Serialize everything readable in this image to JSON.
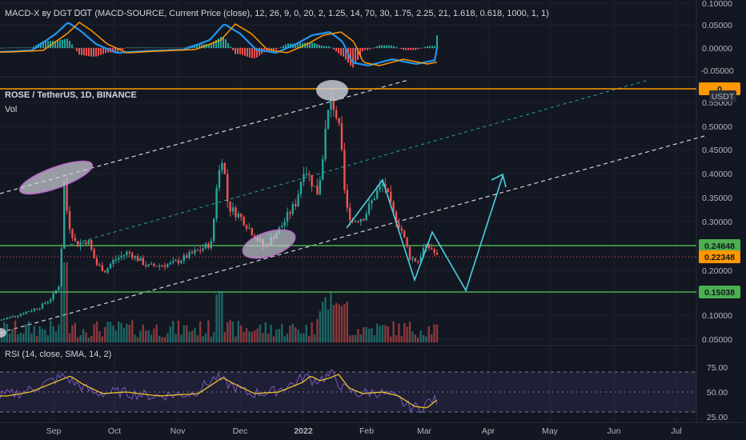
{
  "chart_data": {
    "type": "candlestick",
    "x_labels": [
      "Sep",
      "Oct",
      "Nov",
      "Dec",
      "2022",
      "Feb",
      "Mar",
      "Apr",
      "May",
      "Jun",
      "Jul"
    ],
    "main": {
      "title": "ROSE / TetherUS, 1D, BINANCE",
      "volume_label": "Vol",
      "currency": "USDT",
      "yticks": [
        "0.55000",
        "0.50000",
        "0.45000",
        "0.40000",
        "0.35000",
        "0.30000",
        "0.25000",
        "0.20000",
        "0.10000",
        "0.05000"
      ],
      "price_tags": [
        {
          "value": "0.24648",
          "color": "#4caf50"
        },
        {
          "value": "0.22348",
          "color": "#ff9800"
        },
        {
          "value": "0.15038",
          "color": "#4caf50"
        },
        {
          "value": "0",
          "color": "#ff9800"
        }
      ],
      "horizontal_levels": [
        0.246,
        0.15,
        0.585
      ]
    },
    "macd": {
      "title": "MACD-X вy DGT ᎠᏀᎢ (MACD-SOURCE, Current Price (close), 12, 26, 9, 0, 20, 2, 1.25, 14, 70, 30, 1.75, 2.25, 21, 1.618, 0.618, 1000, 1, 1)",
      "yticks": [
        "0.10000",
        "0.05000",
        "0.00000",
        "-0.05000"
      ]
    },
    "rsi": {
      "title": "RSI (14, close, SMA, 14, 2)",
      "yticks": [
        "75.00",
        "50.00",
        "25.00"
      ],
      "band_upper": 70,
      "band_lower": 30
    },
    "colors": {
      "up": "#26a69a",
      "down": "#ef5350",
      "projection": "#4dd0e1",
      "level": "#4caf50",
      "top_level": "#ff9800",
      "rsi_line": "#7e57c2",
      "rsi_ma": "#e6c229"
    }
  }
}
